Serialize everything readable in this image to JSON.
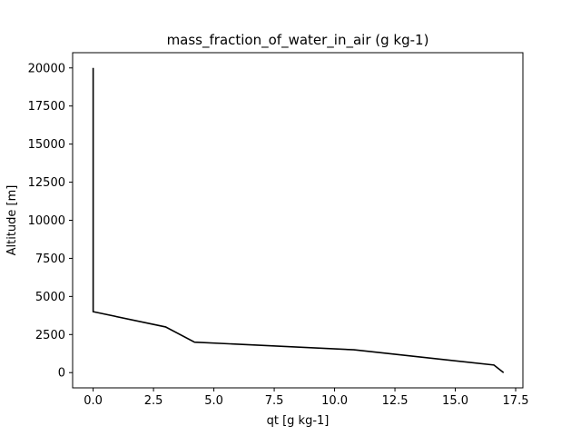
{
  "chart_data": {
    "type": "line",
    "title": "mass_fraction_of_water_in_air (g kg-1)",
    "xlabel": "qt [g kg-1]",
    "ylabel": "Altitude [m]",
    "xlim": [
      -0.85,
      17.8
    ],
    "ylim": [
      -1000,
      21000
    ],
    "xticks": [
      0.0,
      2.5,
      5.0,
      7.5,
      10.0,
      12.5,
      15.0,
      17.5
    ],
    "xtick_labels": [
      "0.0",
      "2.5",
      "5.0",
      "7.5",
      "10.0",
      "12.5",
      "15.0",
      "17.5"
    ],
    "yticks": [
      0,
      2500,
      5000,
      7500,
      10000,
      12500,
      15000,
      17500,
      20000
    ],
    "ytick_labels": [
      "0",
      "2500",
      "5000",
      "7500",
      "10000",
      "12500",
      "15000",
      "17500",
      "20000"
    ],
    "grid": false,
    "line_color": "#000000",
    "series": [
      {
        "x": [
          17.0,
          16.6,
          10.8,
          4.2,
          3.0,
          0.0,
          0.0
        ],
        "y": [
          0,
          500,
          1500,
          2000,
          3000,
          4000,
          20000
        ]
      }
    ]
  }
}
